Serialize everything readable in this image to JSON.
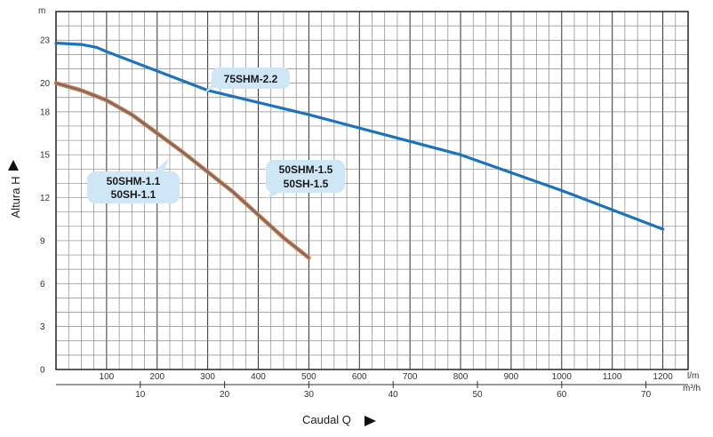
{
  "chart_data": {
    "type": "line",
    "title": "",
    "xlabel": "Caudal  Q",
    "ylabel": "Altura  H",
    "x_unit_primary": "l/m",
    "x_unit_secondary": "m³/h",
    "y_unit": "m",
    "xlim": [
      0,
      1250
    ],
    "ylim": [
      0,
      25
    ],
    "x_ticks_primary": [
      100,
      200,
      300,
      400,
      500,
      600,
      700,
      800,
      900,
      1000,
      1100,
      1200
    ],
    "x_ticks_secondary": [
      10,
      20,
      30,
      40,
      50,
      60,
      70
    ],
    "y_ticks": [
      0,
      3,
      6,
      9,
      12,
      15,
      18,
      20,
      23
    ],
    "grid": true,
    "series": [
      {
        "name": "75SHM-2.2",
        "color": "#1a73bf",
        "points": [
          [
            0,
            22.8
          ],
          [
            50,
            22.7
          ],
          [
            80,
            22.5
          ],
          [
            100,
            22.2
          ],
          [
            300,
            19.5
          ],
          [
            500,
            17.8
          ],
          [
            800,
            15.0
          ],
          [
            1000,
            12.5
          ],
          [
            1200,
            9.8
          ]
        ]
      },
      {
        "name": "50SHM-1.5 / 50SH-1.5",
        "color": "#1a73bf",
        "points": [
          [
            0,
            20.0
          ],
          [
            50,
            19.5
          ],
          [
            100,
            18.8
          ],
          [
            150,
            17.8
          ],
          [
            200,
            16.5
          ],
          [
            250,
            15.2
          ],
          [
            300,
            13.8
          ],
          [
            350,
            12.4
          ],
          [
            400,
            10.8
          ],
          [
            450,
            9.2
          ],
          [
            500,
            7.8
          ]
        ]
      },
      {
        "name": "50SHM-1.1 / 50SH-1.1",
        "color": "#1a73bf",
        "outline_color": "#e0702a",
        "points": [
          [
            0,
            20.0
          ],
          [
            50,
            19.5
          ],
          [
            100,
            18.8
          ],
          [
            150,
            17.8
          ],
          [
            200,
            16.5
          ],
          [
            250,
            15.2
          ],
          [
            300,
            13.8
          ],
          [
            350,
            12.4
          ],
          [
            400,
            10.8
          ],
          [
            450,
            9.2
          ],
          [
            500,
            7.8
          ]
        ]
      }
    ],
    "annotations": [
      "75SHM-2.2",
      "50SHM-1.5",
      "50SH-1.5",
      "50SHM-1.1",
      "50SH-1.1"
    ],
    "callout_color": "#cfe6f7"
  }
}
